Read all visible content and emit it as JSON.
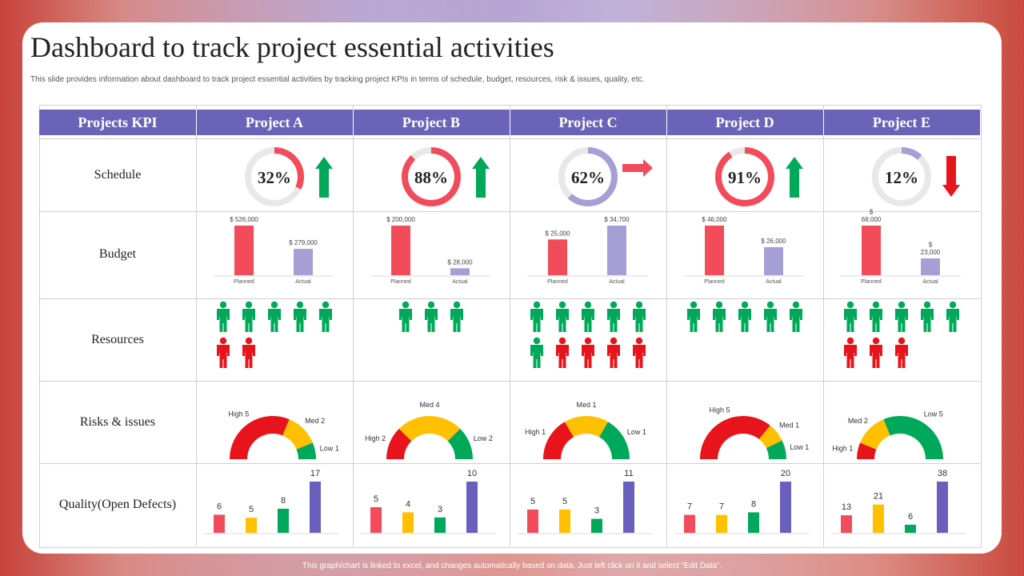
{
  "title": "Dashboard to track project essential activities",
  "subtitle": "This slide provides information about dashboard to track project essential activities by tracking project KPIs  in terms of schedule, budget, resources, risk & issues, quality, etc.",
  "footer": "This graph/chart is linked to excel, and changes automatically based on data. Just left click on it and select “Edit Data”.",
  "header": {
    "kpi": "Projects KPI",
    "projects": [
      "Project A",
      "Project B",
      "Project C",
      "Project D",
      "Project E"
    ]
  },
  "rows": {
    "schedule": "Schedule",
    "budget": "Budget",
    "resources": "Resources",
    "risks": "Risks & issues",
    "quality": "Quality(Open Defects)"
  },
  "colors": {
    "header": "#6b63b8",
    "red": "#f24b5a",
    "lavender": "#a59fd6",
    "green": "#00a859",
    "red_dark": "#e8141c",
    "yellow": "#ffc000",
    "purple": "#6b5fbd",
    "track": "#e8e8e8"
  },
  "chart_data": [
    {
      "type": "donut",
      "title": "Schedule",
      "categories": [
        "Project A",
        "Project B",
        "Project C",
        "Project D",
        "Project E"
      ],
      "values": [
        32,
        88,
        62,
        91,
        12
      ],
      "labels": [
        "32%",
        "88%",
        "62%",
        "91%",
        "12%"
      ],
      "ring_color": [
        "red",
        "red",
        "lavender",
        "red",
        "lavender"
      ],
      "trend": [
        "up",
        "up",
        "right",
        "up",
        "down"
      ],
      "trend_icons": [
        "arrow-up-icon",
        "arrow-up-icon",
        "arrow-right-icon",
        "arrow-up-icon",
        "arrow-down-icon"
      ]
    },
    {
      "type": "bar",
      "title": "Budget",
      "categories": [
        "Planned",
        "Actual"
      ],
      "series": [
        {
          "name": "Project A",
          "values": [
            526000,
            279000
          ],
          "labels": [
            "$ 526,000",
            "$ 279,000"
          ]
        },
        {
          "name": "Project B",
          "values": [
            200000,
            28000
          ],
          "labels": [
            "$ 200,000",
            "$ 28,000"
          ]
        },
        {
          "name": "Project C",
          "values": [
            25000,
            34700
          ],
          "labels": [
            "$ 25,000",
            "$ 34,700"
          ]
        },
        {
          "name": "Project D",
          "values": [
            46000,
            26000
          ],
          "labels": [
            "$ 46,000",
            "$ 26,000"
          ]
        },
        {
          "name": "Project E",
          "values": [
            68000,
            23000
          ],
          "labels": [
            "$\n68,000",
            "$\n23,000"
          ]
        }
      ]
    },
    {
      "type": "pictogram",
      "title": "Resources",
      "icon": "person-icon",
      "series": [
        {
          "name": "Project A",
          "available": 5,
          "unavailable": 2
        },
        {
          "name": "Project B",
          "available": 3,
          "unavailable": 0
        },
        {
          "name": "Project C",
          "available": 6,
          "unavailable": 4
        },
        {
          "name": "Project D",
          "available": 5,
          "unavailable": 0
        },
        {
          "name": "Project E",
          "available": 5,
          "unavailable": 3
        }
      ]
    },
    {
      "type": "half-donut",
      "title": "Risks & issues",
      "categories": [
        "High",
        "Med",
        "Low"
      ],
      "series": [
        {
          "name": "Project A",
          "values": [
            5,
            2,
            1
          ],
          "labels": [
            "High 5",
            "Med 2",
            "Low 1"
          ]
        },
        {
          "name": "Project B",
          "values": [
            2,
            4,
            2
          ],
          "labels": [
            "High 2",
            "Med 4",
            "Low 2"
          ]
        },
        {
          "name": "Project C",
          "values": [
            1,
            1,
            1
          ],
          "labels": [
            "High 1",
            "Med 1",
            "Low 1"
          ]
        },
        {
          "name": "Project D",
          "values": [
            5,
            1,
            1
          ],
          "labels": [
            "High 5",
            "Med 1",
            "Low 1"
          ]
        },
        {
          "name": "Project E",
          "values": [
            1,
            2,
            5
          ],
          "labels": [
            "High 1",
            "Med 2",
            "Low 5"
          ]
        }
      ]
    },
    {
      "type": "bar",
      "title": "Quality(Open Defects)",
      "series": [
        {
          "name": "Project A",
          "values": [
            6,
            5,
            8,
            17
          ]
        },
        {
          "name": "Project B",
          "values": [
            5,
            4,
            3,
            10
          ]
        },
        {
          "name": "Project C",
          "values": [
            5,
            5,
            3,
            11
          ]
        },
        {
          "name": "Project D",
          "values": [
            7,
            7,
            8,
            20
          ]
        },
        {
          "name": "Project E",
          "values": [
            13,
            21,
            6,
            38
          ]
        }
      ],
      "bar_colors": [
        "red",
        "yellow",
        "green",
        "purple"
      ]
    }
  ]
}
